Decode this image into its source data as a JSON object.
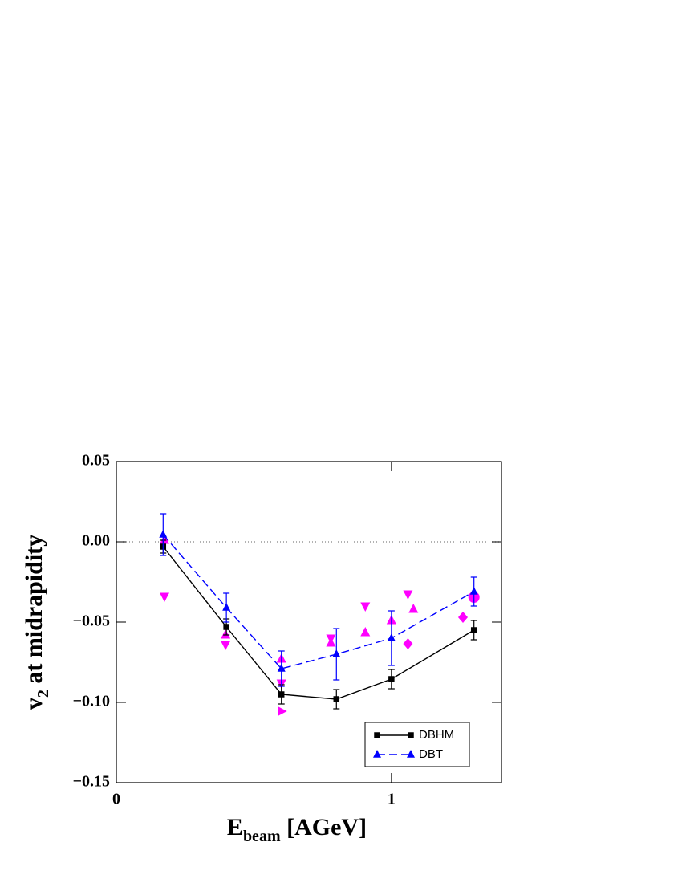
{
  "chart_data": {
    "type": "line",
    "x_label": {
      "main": "E",
      "sub": "beam",
      "rest": " [AGeV]"
    },
    "y_label": {
      "main": "v",
      "sub": "2",
      "rest": " at midrapidity"
    },
    "xlim": [
      0,
      1.4
    ],
    "xticks": [
      0,
      1
    ],
    "ylim": [
      -0.15,
      0.05
    ],
    "yticks": [
      {
        "value": -0.15,
        "label": "−0.15"
      },
      {
        "value": -0.1,
        "label": "−0.10"
      },
      {
        "value": -0.05,
        "label": "−0.05"
      },
      {
        "value": 0,
        "label": "0.00"
      },
      {
        "value": 0.05,
        "label": "0.05"
      }
    ],
    "hline": 0,
    "series": [
      {
        "name": "DBHM",
        "color": "#000000",
        "marker": "square",
        "dash": "solid",
        "x": [
          0.17,
          0.4,
          0.6,
          0.8,
          1.0,
          1.3
        ],
        "values": [
          -0.003,
          -0.053,
          -0.095,
          -0.098,
          -0.0855,
          -0.055
        ],
        "errors": [
          0.004,
          0.005,
          0.006,
          0.006,
          0.006,
          0.006
        ]
      },
      {
        "name": "DBT",
        "color": "#0000ff",
        "marker": "triangle-up",
        "dash": "dashed",
        "x": [
          0.17,
          0.4,
          0.6,
          0.8,
          1.0,
          1.3
        ],
        "values": [
          0.0045,
          -0.041,
          -0.079,
          -0.07,
          -0.06,
          -0.031
        ],
        "errors": [
          0.013,
          0.009,
          0.011,
          0.016,
          0.017,
          0.009
        ]
      }
    ],
    "points": [
      {
        "marker": "triangle-down",
        "color": "#ff00ff",
        "x": [
          0.175,
          0.397,
          0.6,
          0.78,
          0.905,
          1.06
        ],
        "values": [
          -0.034,
          -0.064,
          -0.088,
          -0.06,
          -0.04,
          -0.0325
        ]
      },
      {
        "marker": "triangle-up",
        "color": "#ff00ff",
        "x": [
          0.175,
          0.397,
          0.6,
          0.78,
          0.905,
          1.0,
          1.08
        ],
        "values": [
          0.001,
          -0.058,
          -0.073,
          -0.063,
          -0.0565,
          -0.049,
          -0.042
        ]
      },
      {
        "marker": "diamond",
        "color": "#ff00ff",
        "x": [
          1.06,
          1.26
        ],
        "values": [
          -0.0635,
          -0.047
        ]
      },
      {
        "marker": "circle",
        "color": "#ff00ff",
        "x": [
          1.3
        ],
        "values": [
          -0.0345
        ]
      },
      {
        "marker": "triangle-right",
        "color": "#ff00ff",
        "x": [
          0.6
        ],
        "values": [
          -0.1055
        ]
      }
    ]
  }
}
